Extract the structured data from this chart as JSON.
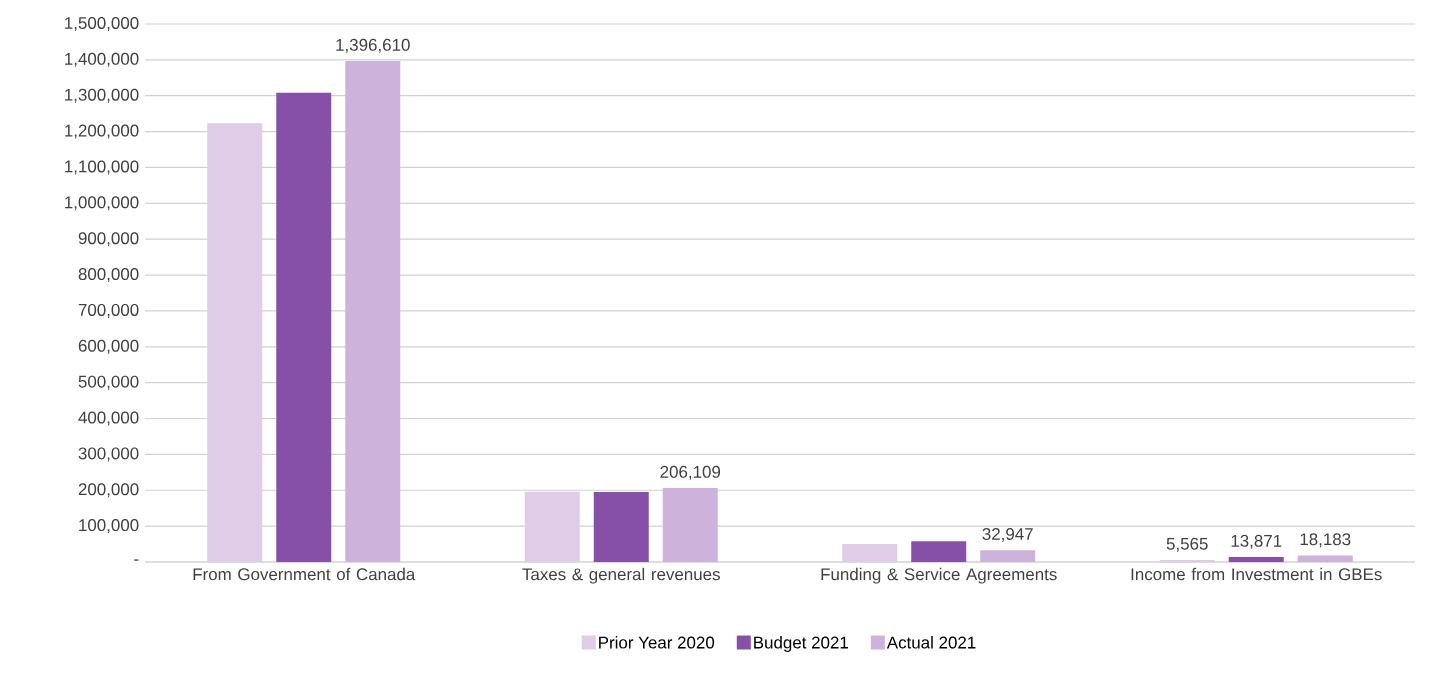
{
  "chart_data": {
    "type": "bar",
    "categories": [
      "From Government of Canada",
      "Taxes & general revenues",
      "Funding & Service Agreements",
      "Income from Investment in GBEs"
    ],
    "series": [
      {
        "name": "Prior Year 2020",
        "color": "#dfcde7",
        "values": [
          1223000,
          196000,
          50000,
          5565
        ],
        "value_labels": [
          null,
          null,
          null,
          "5,565"
        ]
      },
      {
        "name": "Budget 2021",
        "color": "#864fa8",
        "values": [
          1308000,
          195000,
          58000,
          13871
        ],
        "value_labels": [
          null,
          null,
          null,
          "13,871"
        ]
      },
      {
        "name": "Actual 2021",
        "color": "#cdb3dc",
        "values": [
          1396610,
          206109,
          32947,
          18183
        ],
        "value_labels": [
          "1,396,610",
          "206,109",
          "32,947",
          "18,183"
        ]
      }
    ],
    "ylim": [
      0,
      1500000
    ],
    "yticks": [
      {
        "value": 0,
        "label": "-"
      },
      {
        "value": 100000,
        "label": "100,000"
      },
      {
        "value": 200000,
        "label": "200,000"
      },
      {
        "value": 300000,
        "label": "300,000"
      },
      {
        "value": 400000,
        "label": "400,000"
      },
      {
        "value": 500000,
        "label": "500,000"
      },
      {
        "value": 600000,
        "label": "600,000"
      },
      {
        "value": 700000,
        "label": "700,000"
      },
      {
        "value": 800000,
        "label": "800,000"
      },
      {
        "value": 900000,
        "label": "900,000"
      },
      {
        "value": 1000000,
        "label": "1,000,000"
      },
      {
        "value": 1100000,
        "label": "1,100,000"
      },
      {
        "value": 1200000,
        "label": "1,200,000"
      },
      {
        "value": 1300000,
        "label": "1,300,000"
      },
      {
        "value": 1400000,
        "label": "1,400,000"
      },
      {
        "value": 1500000,
        "label": "1,500,000"
      }
    ],
    "grid": "y",
    "legend": "bottom"
  }
}
